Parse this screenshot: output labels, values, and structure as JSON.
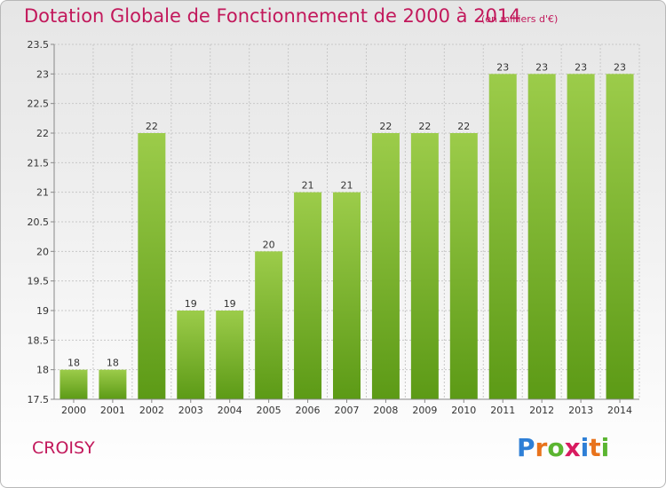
{
  "header": {
    "title": "Dotation Globale de Fonctionnement de 2000 à 2014",
    "subtitle": "(en milliers d'€)"
  },
  "footer": {
    "commune": "CROISY",
    "brand": "Proxiti"
  },
  "colors": {
    "title": "#c2185b",
    "bar_light": "#9ccc4a",
    "bar_dark": "#5c9a16",
    "grid": "#c8c8c8"
  },
  "chart_data": {
    "type": "bar",
    "categories": [
      "2000",
      "2001",
      "2002",
      "2003",
      "2004",
      "2005",
      "2006",
      "2007",
      "2008",
      "2009",
      "2010",
      "2011",
      "2012",
      "2013",
      "2014"
    ],
    "values": [
      18,
      18,
      22,
      19,
      19,
      20,
      21,
      21,
      22,
      22,
      22,
      23,
      23,
      23,
      23
    ],
    "data_labels": [
      "18",
      "18",
      "22",
      "19",
      "19",
      "20",
      "21",
      "21",
      "22",
      "22",
      "22",
      "23",
      "23",
      "23",
      "23"
    ],
    "title": "Dotation Globale de Fonctionnement de 2000 à 2014",
    "subtitle": "(en milliers d'€)",
    "ylim": [
      17.5,
      23.5
    ],
    "yticks": [
      "17.5",
      "18",
      "18.5",
      "19",
      "19.5",
      "20",
      "20.5",
      "21",
      "21.5",
      "22",
      "22.5",
      "23",
      "23.5"
    ],
    "grid": true,
    "legend": "none"
  }
}
